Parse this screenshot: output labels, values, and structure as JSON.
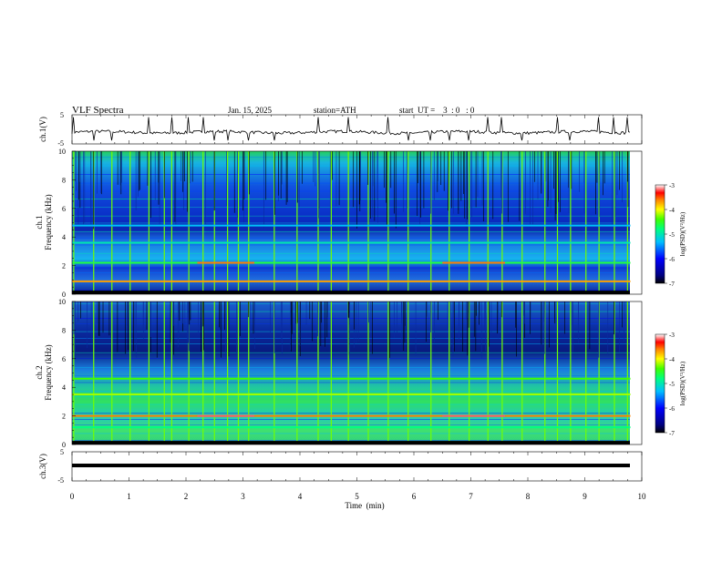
{
  "header": {
    "title": "VLF  Spectra",
    "date": "Jan. 15, 2025",
    "station": "station=ATH",
    "start": "start  UT =    3  : 0   : 0"
  },
  "colorbar": {
    "label_html": "log(PSD)(V²/Hz)",
    "ticks": [
      "-3",
      "-4",
      "-5",
      "-6",
      "-7"
    ]
  },
  "chart_data": [
    {
      "type": "line",
      "ylabel": "ch.1(V)",
      "ylim": [
        -5,
        5
      ],
      "y_ticks": [
        "5",
        "-5"
      ],
      "trace": "noisy waveform, baseline about -1 V with occasional spikes",
      "baseline": -1,
      "spike_times_min": [
        0.03,
        0.38,
        0.7,
        1.02,
        1.35,
        1.62,
        1.75,
        2.05,
        2.3,
        2.5,
        2.73,
        2.92,
        3.1,
        3.55,
        3.95,
        4.32,
        4.55,
        4.85,
        5.2,
        5.55,
        5.9,
        6.3,
        6.62,
        6.97,
        7.3,
        7.55,
        7.9,
        8.3,
        8.52,
        8.75,
        9.02,
        9.25,
        9.52,
        9.75
      ]
    },
    {
      "type": "heatmap",
      "ylabel": "ch.1\nFrequency (kHz)",
      "ylim": [
        0,
        10
      ],
      "y_ticks": [
        "0",
        "2",
        "4",
        "6",
        "8",
        "10"
      ],
      "color_range": [
        -7,
        -3
      ],
      "spikes_min": [
        0.03,
        0.38,
        0.7,
        1.02,
        1.35,
        1.62,
        1.75,
        2.05,
        2.3,
        2.5,
        2.73,
        2.92,
        3.1,
        3.55,
        3.95,
        4.32,
        4.55,
        4.85,
        5.2,
        5.55,
        5.9,
        6.3,
        6.62,
        6.97,
        7.3,
        7.55,
        7.9,
        8.3,
        8.52,
        8.75,
        9.02,
        9.25,
        9.52,
        9.75
      ],
      "tone_lines": [
        {
          "freq_khz": 2.2,
          "t_start": 0.0,
          "t_end": 9.8,
          "level": -4.6
        },
        {
          "freq_khz": 2.2,
          "t_start": 2.2,
          "t_end": 3.2,
          "level": -3.6
        },
        {
          "freq_khz": 2.2,
          "t_start": 6.5,
          "t_end": 7.6,
          "level": -3.6
        },
        {
          "freq_khz": 0.9,
          "t_start": 0.0,
          "t_end": 9.8,
          "level": -3.7
        },
        {
          "freq_khz": 3.6,
          "t_start": 0.0,
          "t_end": 9.8,
          "level": -5.0
        },
        {
          "freq_khz": 4.8,
          "t_start": 0.0,
          "t_end": 9.8,
          "level": -5.3
        }
      ]
    },
    {
      "type": "heatmap",
      "ylabel": "ch.2\nFrequency (kHz)",
      "ylim": [
        0,
        10
      ],
      "y_ticks": [
        "0",
        "2",
        "4",
        "6",
        "8",
        "10"
      ],
      "color_range": [
        -7,
        -3
      ],
      "spikes_min": [
        0.03,
        0.38,
        0.7,
        1.02,
        1.35,
        1.62,
        1.75,
        2.05,
        2.3,
        2.5,
        2.73,
        2.92,
        3.1,
        3.55,
        3.95,
        4.32,
        4.55,
        4.85,
        5.2,
        5.55,
        5.9,
        6.3,
        6.62,
        6.97,
        7.3,
        7.55,
        7.9,
        8.3,
        8.52,
        8.75,
        9.02,
        9.25,
        9.52,
        9.75
      ],
      "tone_lines": [
        {
          "freq_khz": 2.0,
          "t_start": 0.0,
          "t_end": 9.8,
          "level": -3.6
        },
        {
          "freq_khz": 2.0,
          "t_start": 2.2,
          "t_end": 3.2,
          "level": -3.2
        },
        {
          "freq_khz": 2.0,
          "t_start": 6.5,
          "t_end": 7.6,
          "level": -3.2
        },
        {
          "freq_khz": 3.5,
          "t_start": 0.0,
          "t_end": 9.8,
          "level": -4.2
        },
        {
          "freq_khz": 4.6,
          "t_start": 0.0,
          "t_end": 9.8,
          "level": -4.4
        },
        {
          "freq_khz": 1.2,
          "t_start": 0.0,
          "t_end": 9.8,
          "level": -4.8
        }
      ]
    },
    {
      "type": "line",
      "ylabel": "ch.3(V)",
      "xlabel": "Time  (min)",
      "xlim": [
        0,
        10
      ],
      "ylim": [
        -5,
        5
      ],
      "y_ticks": [
        "5",
        "-5"
      ],
      "x_ticks": [
        "0",
        "1",
        "2",
        "3",
        "4",
        "5",
        "6",
        "7",
        "8",
        "9",
        "10"
      ],
      "trace": "flat thick band at about -1 V",
      "baseline": -1
    }
  ]
}
